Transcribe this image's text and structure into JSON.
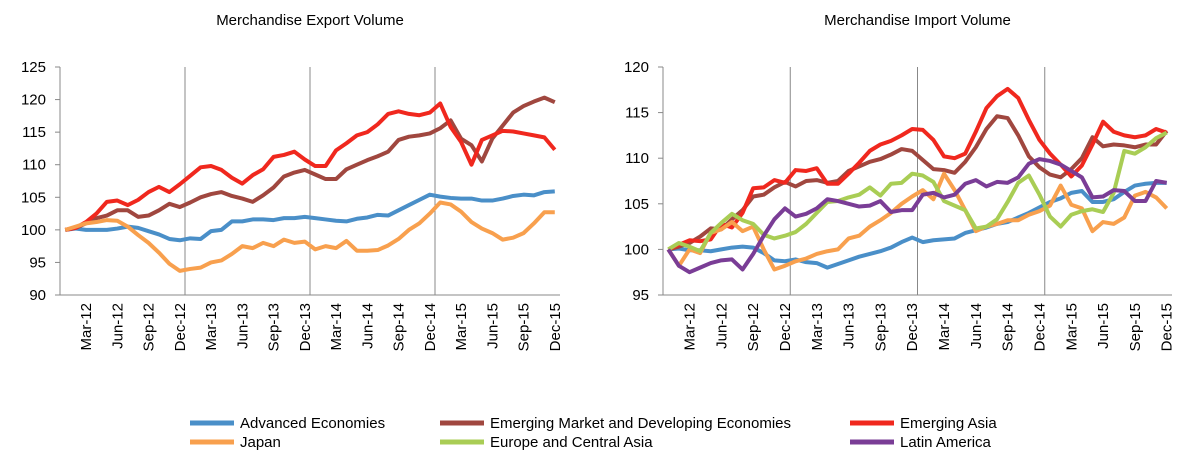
{
  "chart_data": [
    {
      "type": "line",
      "title": "Merchandise Export Volume",
      "categories": [
        null,
        null,
        "Mar-12",
        null,
        null,
        "Jun-12",
        null,
        null,
        "Sep-12",
        null,
        null,
        "Dec-12",
        null,
        null,
        "Mar-13",
        null,
        null,
        "Jun-13",
        null,
        null,
        "Sep-13",
        null,
        null,
        "Dec-13",
        null,
        null,
        "Mar-14",
        null,
        null,
        "Jun-14",
        null,
        null,
        "Sep-14",
        null,
        null,
        "Dec-14",
        null,
        null,
        "Mar-15",
        null,
        null,
        "Jun-15",
        null,
        null,
        "Sep-15",
        null,
        null,
        "Dec-15"
      ],
      "ylim": [
        90,
        125
      ],
      "yticks": [
        90,
        95,
        100,
        105,
        110,
        115,
        120,
        125
      ],
      "series": [
        {
          "name": "Advanced Economies",
          "color": "#4a8fc8",
          "values": [
            100,
            100.2,
            100,
            100,
            100,
            100.2,
            100.5,
            100.3,
            99.8,
            99.3,
            98.6,
            98.4,
            98.7,
            98.6,
            99.8,
            100,
            101.3,
            101.3,
            101.6,
            101.6,
            101.5,
            101.8,
            101.8,
            102,
            101.8,
            101.6,
            101.4,
            101.3,
            101.7,
            101.9,
            102.3,
            102.2,
            103,
            103.8,
            104.6,
            105.4,
            105.1,
            104.9,
            104.8,
            104.8,
            104.5,
            104.5,
            104.8,
            105.2,
            105.4,
            105.3,
            105.8,
            105.9
          ]
        },
        {
          "name": "Emerging Market and Developing Economies",
          "color": "#a0473f",
          "values": [
            100,
            100.3,
            101,
            101.8,
            102.2,
            103,
            103,
            102,
            102.2,
            103,
            104,
            103.5,
            104.2,
            105,
            105.5,
            105.8,
            105.2,
            104.8,
            104.3,
            105.3,
            106.5,
            108.2,
            108.8,
            109.2,
            108.5,
            107.8,
            107.8,
            109.3,
            110,
            110.7,
            111.3,
            112,
            113.8,
            114.3,
            114.5,
            114.8,
            115.6,
            116.8,
            114,
            113,
            110.5,
            114,
            116,
            118,
            119,
            119.7,
            120.3,
            119.6
          ]
        },
        {
          "name": "Emerging Asia",
          "color": "#f0281e",
          "values": [
            100,
            100.3,
            101.2,
            102.5,
            104.3,
            104.5,
            103.8,
            104.6,
            105.8,
            106.6,
            105.8,
            107,
            108.3,
            109.6,
            109.8,
            109.2,
            108,
            107.1,
            108.4,
            109.3,
            111.2,
            111.5,
            112,
            110.8,
            109.8,
            109.8,
            112.2,
            113.3,
            114.5,
            115,
            116.2,
            117.8,
            118.2,
            117.8,
            117.6,
            118,
            119.4,
            115.8,
            113.5,
            110,
            113.8,
            114.5,
            115.2,
            115.1,
            114.8,
            114.5,
            114.2,
            112.3
          ]
        },
        {
          "name": "Japan",
          "color": "#f8a04e",
          "values": [
            100,
            100.5,
            101,
            101.2,
            101.5,
            101.4,
            100.5,
            99.2,
            98,
            96.5,
            94.8,
            93.7,
            94,
            94.2,
            95,
            95.3,
            96.3,
            97.5,
            97.2,
            98,
            97.5,
            98.5,
            98,
            98.2,
            97,
            97.5,
            97.2,
            98.3,
            96.8,
            96.8,
            96.9,
            97.6,
            98.6,
            100,
            101,
            102.5,
            104.2,
            103.9,
            102.8,
            101.2,
            100.2,
            99.5,
            98.5,
            98.8,
            99.5,
            101,
            102.7,
            102.7
          ]
        }
      ]
    },
    {
      "type": "line",
      "title": "Merchandise Import Volume",
      "categories": [
        null,
        null,
        "Mar-12",
        null,
        null,
        "Jun-12",
        null,
        null,
        "Sep-12",
        null,
        null,
        "Dec-12",
        null,
        null,
        "Mar-13",
        null,
        null,
        "Jun-13",
        null,
        null,
        "Sep-13",
        null,
        null,
        "Dec-13",
        null,
        null,
        "Mar-14",
        null,
        null,
        "Jun-14",
        null,
        null,
        "Sep-14",
        null,
        null,
        "Dec-14",
        null,
        null,
        "Mar-15",
        null,
        null,
        "Jun-15",
        null,
        null,
        "Sep-15",
        null,
        null,
        "Dec-15"
      ],
      "ylim": [
        95,
        120
      ],
      "yticks": [
        95,
        100,
        105,
        110,
        115,
        120
      ],
      "series": [
        {
          "color": "#4a8fc8",
          "values": [
            100,
            100.1,
            99.9,
            99.9,
            99.8,
            100,
            100.2,
            100.3,
            100.2,
            99.6,
            98.8,
            98.7,
            98.9,
            98.6,
            98.5,
            98,
            98.4,
            98.8,
            99.2,
            99.5,
            99.8,
            100.2,
            100.8,
            101.3,
            100.8,
            101,
            101.1,
            101.2,
            101.8,
            102.1,
            102.4,
            102.8,
            103,
            103.5,
            104,
            104.6,
            105.2,
            105.6,
            106.2,
            106.4,
            105.2,
            105.2,
            105.5,
            106.3,
            107,
            107.2,
            107.3,
            107.3
          ]
        },
        {
          "color": "#a0473f",
          "values": [
            100,
            100.3,
            100.7,
            101.4,
            102.3,
            102.2,
            103.3,
            104.3,
            105.8,
            106,
            106.8,
            107.4,
            106.9,
            107.5,
            107.6,
            107.3,
            107.5,
            108.6,
            109.1,
            109.6,
            109.9,
            110.4,
            111,
            110.8,
            109.8,
            108.8,
            108.7,
            108.4,
            109.6,
            111.2,
            113.2,
            114.6,
            114.4,
            112.5,
            110.2,
            109,
            108.2,
            107.9,
            108.8,
            110,
            112.3,
            111.3,
            111.5,
            111.4,
            111.2,
            111.5,
            111.5,
            113
          ]
        },
        {
          "color": "#f0281e",
          "values": [
            100,
            100.5,
            101,
            100.9,
            101.1,
            102.8,
            102.4,
            104,
            106.7,
            106.8,
            107.6,
            107.3,
            108.7,
            108.6,
            108.9,
            107.2,
            107.2,
            108.3,
            109.5,
            110.8,
            111.5,
            111.9,
            112.5,
            113.2,
            113.1,
            112,
            110.2,
            110,
            110.5,
            112.9,
            115.5,
            116.8,
            117.6,
            116.6,
            114.2,
            112,
            110.5,
            109.3,
            108,
            109.2,
            111.5,
            114,
            112.9,
            112.5,
            112.3,
            112.5,
            113.2,
            112.8
          ]
        },
        {
          "color": "#f8a04e",
          "values": [
            100,
            98.2,
            100,
            99.6,
            101.8,
            102.2,
            103,
            102,
            102.5,
            100,
            97.8,
            98.2,
            98.7,
            99,
            99.5,
            99.8,
            100,
            101.2,
            101.5,
            102.5,
            103.2,
            104,
            105,
            105.8,
            106.5,
            105.5,
            108.3,
            106.5,
            104.3,
            102,
            102.5,
            102.8,
            103.2,
            103.2,
            103.8,
            104.2,
            104.8,
            107,
            104.9,
            104.5,
            102,
            103,
            102.8,
            103.5,
            105.9,
            106.3,
            105.7,
            104.5
          ]
        },
        {
          "name": "Europe and Central Asia",
          "color": "#a9cd55",
          "values": [
            100,
            100.7,
            100.3,
            99.8,
            101.8,
            102.9,
            103.9,
            103.2,
            102.8,
            101.6,
            101.2,
            101.5,
            101.9,
            102.8,
            104,
            105.2,
            105.3,
            105.7,
            106,
            106.8,
            105.9,
            107.2,
            107.3,
            108.3,
            108.1,
            107.4,
            105.3,
            104.8,
            104.3,
            102.3,
            102.5,
            103.3,
            105.2,
            107.3,
            108.1,
            106,
            103.6,
            102.5,
            103.8,
            104.2,
            104.4,
            104.1,
            106.2,
            110.8,
            110.5,
            111.2,
            112.2,
            112.8
          ]
        },
        {
          "name": "Latin America",
          "color": "#7a3d96",
          "values": [
            100,
            98.2,
            97.5,
            98,
            98.5,
            98.8,
            98.9,
            97.8,
            99.5,
            101.5,
            103.3,
            104.5,
            103.6,
            103.9,
            104.5,
            105.5,
            105.3,
            105,
            104.7,
            104.8,
            105.3,
            104.1,
            104.3,
            104.3,
            106,
            106.2,
            105.7,
            106,
            107.2,
            107.6,
            106.9,
            107.4,
            107.3,
            107.9,
            109.4,
            109.9,
            109.7,
            109.3,
            108.6,
            107.9,
            105.7,
            105.8,
            106.5,
            106.4,
            105.3,
            105.3,
            107.5,
            107.3
          ]
        }
      ]
    }
  ]
}
